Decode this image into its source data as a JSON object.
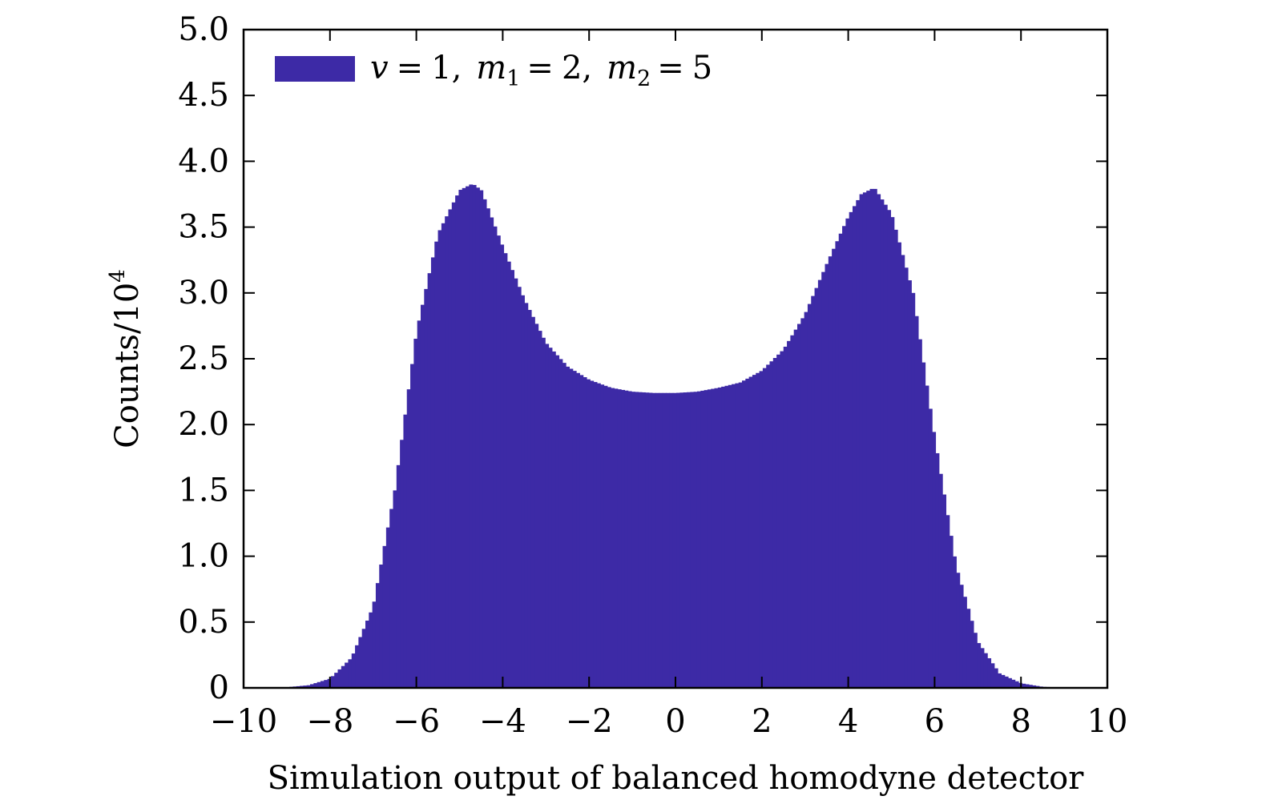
{
  "chart_data": {
    "type": "bar",
    "subtype": "histogram",
    "xlabel": "Simulation output of balanced homodyne detector",
    "ylabel_base": "Counts/10",
    "ylabel_exponent": "4",
    "xlim": [
      -10,
      10
    ],
    "ylim": [
      0,
      5
    ],
    "xticks": [
      -10,
      -8,
      -6,
      -4,
      -2,
      0,
      2,
      4,
      6,
      8,
      10
    ],
    "xtick_labels": [
      "−10",
      "−8",
      "−6",
      "−4",
      "−2",
      "0",
      "2",
      "4",
      "6",
      "8",
      "10"
    ],
    "yticks": [
      0,
      0.5,
      1,
      1.5,
      2,
      2.5,
      3,
      3.5,
      4,
      4.5,
      5
    ],
    "ytick_labels": [
      "0",
      "0.5",
      "1.0",
      "1.5",
      "2.0",
      "2.5",
      "3.0",
      "3.5",
      "4.0",
      "4.5",
      "5.0"
    ],
    "grid": false,
    "legend_position": "top-left",
    "series": [
      {
        "name": "v = 1, m1 = 2, m2 = 5",
        "legend": {
          "v": "v",
          "eq": "=",
          "v_val": "1,",
          "m": "m",
          "m1_sub": "1",
          "m1_val": "2,",
          "m2_sub": "2",
          "m2_val": "5"
        },
        "color": "#3d2aa6",
        "x": [
          -9.5,
          -9.0,
          -8.5,
          -8.0,
          -7.5,
          -7.0,
          -6.5,
          -6.0,
          -5.5,
          -5.0,
          -4.7,
          -4.5,
          -4.0,
          -3.5,
          -3.0,
          -2.5,
          -2.0,
          -1.5,
          -1.0,
          -0.5,
          0.0,
          0.5,
          1.0,
          1.5,
          2.0,
          2.5,
          3.0,
          3.5,
          4.0,
          4.3,
          4.6,
          5.0,
          5.5,
          6.0,
          6.5,
          7.0,
          7.5,
          8.0,
          8.5,
          9.0,
          9.3
        ],
        "values": [
          0.002,
          0.005,
          0.02,
          0.07,
          0.23,
          0.62,
          1.5,
          2.7,
          3.45,
          3.78,
          3.83,
          3.78,
          3.35,
          2.95,
          2.62,
          2.44,
          2.34,
          2.28,
          2.25,
          2.24,
          2.24,
          2.25,
          2.28,
          2.32,
          2.41,
          2.57,
          2.84,
          3.22,
          3.58,
          3.75,
          3.8,
          3.6,
          3.0,
          1.9,
          0.92,
          0.35,
          0.11,
          0.035,
          0.008,
          0.002,
          0.001
        ]
      }
    ]
  }
}
